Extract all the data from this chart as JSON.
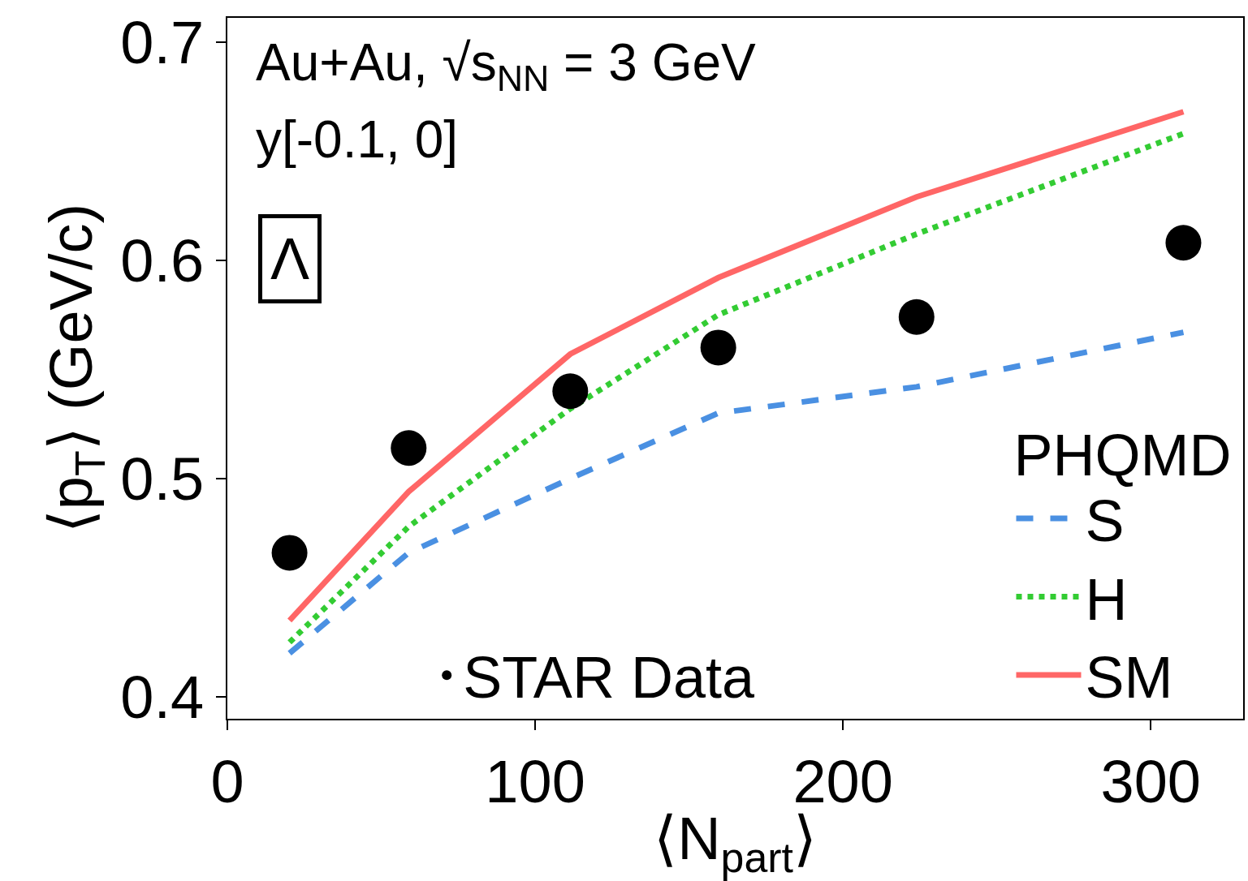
{
  "chart_data": {
    "type": "line",
    "xlabel": "⟨N$_{part}$⟩",
    "ylabel": "⟨p$_{T}$⟩ (GeV/c)",
    "annotations": [
      "Au+Au, √s$_{NN}$ = 3 GeV",
      "y[-0.1, 0]",
      "Λ"
    ],
    "legend_title": "PHQMD",
    "legend": "bottom right",
    "x": [
      20.2,
      58.9,
      111.4,
      159.5,
      223.9,
      310.6
    ],
    "series": [
      {
        "name": "S",
        "color": "#4a90e2",
        "line_style": "dashed",
        "values": [
          0.42,
          0.466,
          0.5,
          0.53,
          0.542,
          0.567
        ]
      },
      {
        "name": "H",
        "color": "#33cc33",
        "line_style": "dotted",
        "values": [
          0.425,
          0.478,
          0.532,
          0.575,
          0.612,
          0.658
        ]
      },
      {
        "name": "SM",
        "color": "#ff6666",
        "line_style": "solid",
        "values": [
          0.435,
          0.494,
          0.557,
          0.592,
          0.629,
          0.668
        ]
      },
      {
        "name": "STAR Data",
        "type": "scatter",
        "color": "#000000",
        "marker": "circle",
        "values": [
          0.466,
          0.514,
          0.54,
          0.56,
          0.574,
          0.608
        ]
      }
    ],
    "xlim": [
      0,
      330
    ],
    "ylim": [
      0.39,
      0.711
    ],
    "xticks": [
      0,
      100,
      200,
      300
    ],
    "yticks": [
      0.4,
      0.5,
      0.6,
      0.7
    ],
    "grid": false
  }
}
